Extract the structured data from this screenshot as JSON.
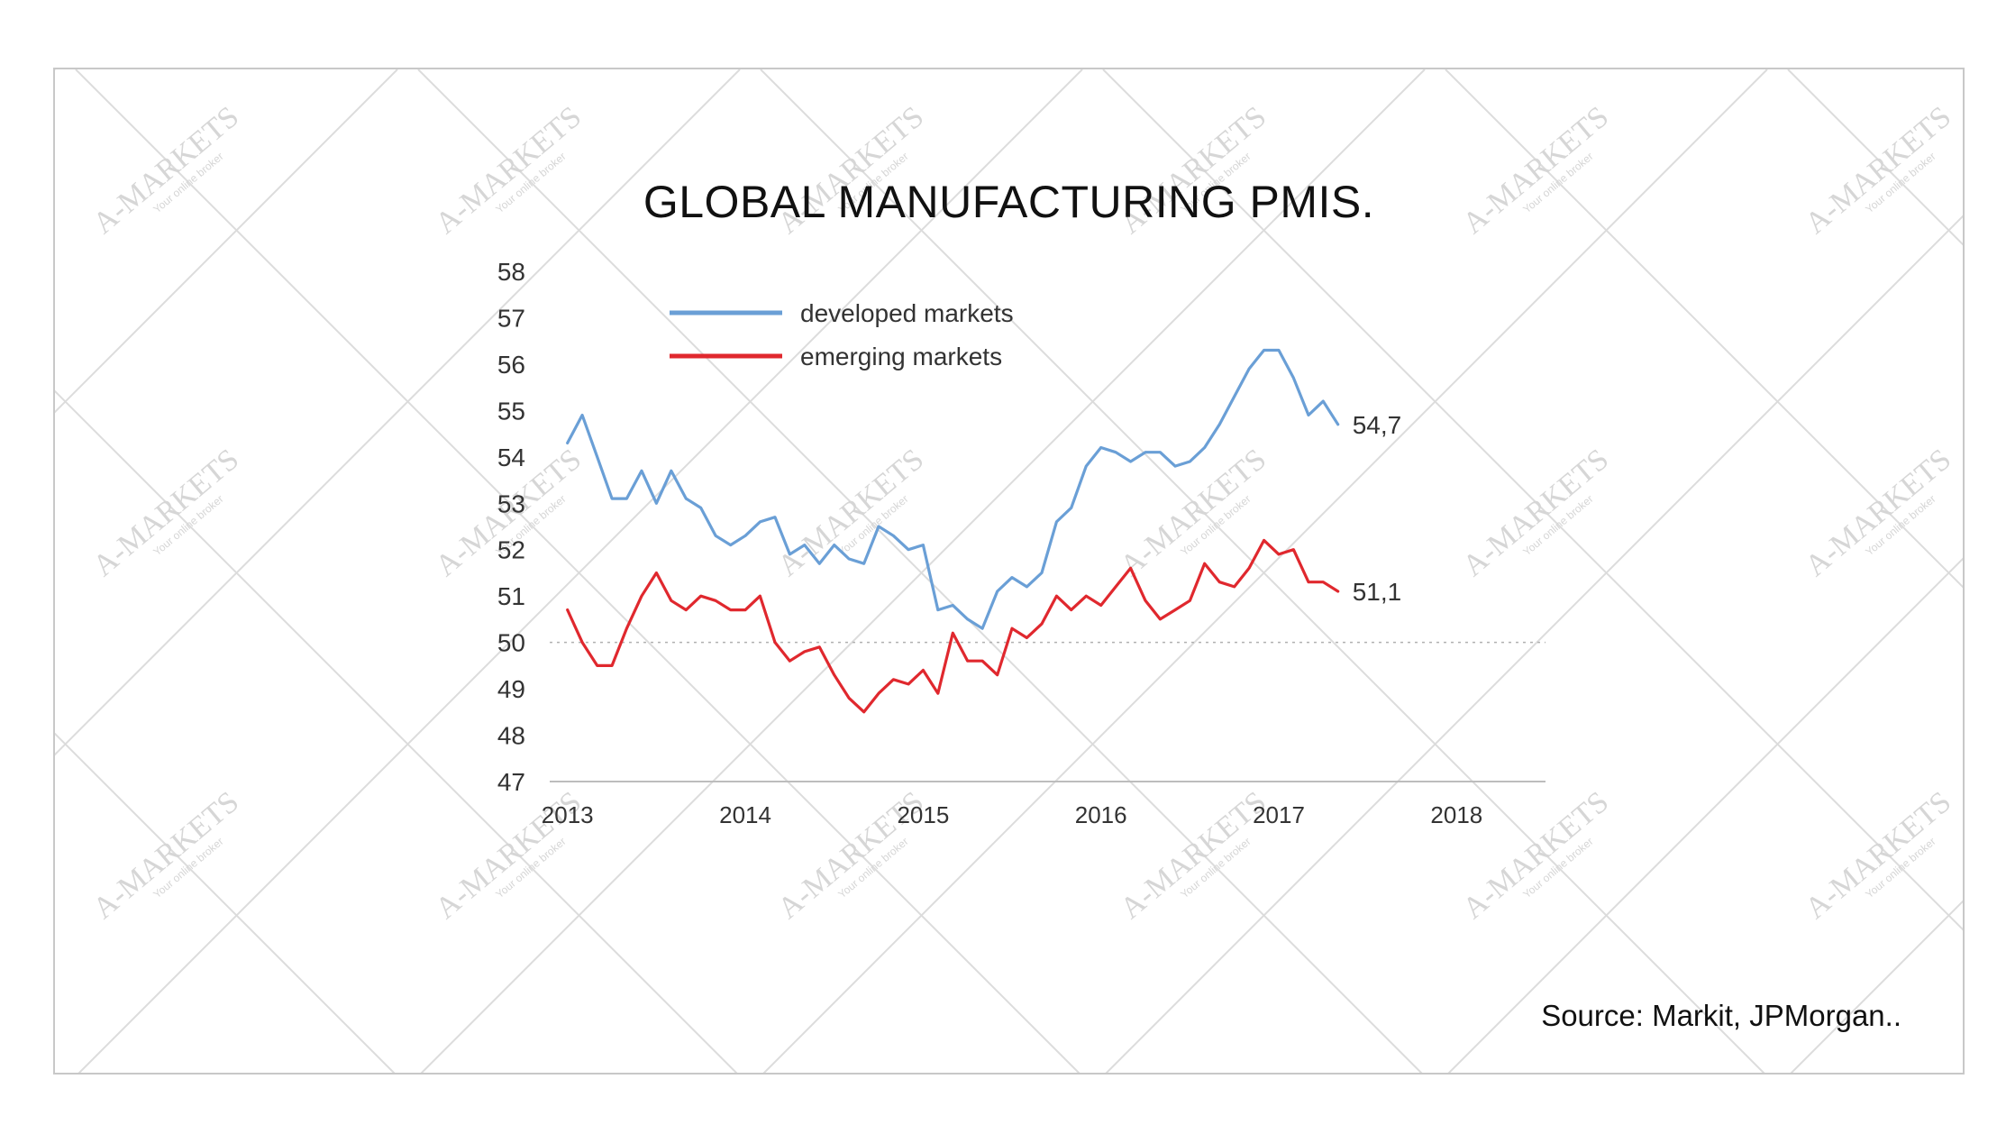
{
  "chart_data": {
    "type": "line",
    "title": "GLOBAL MANUFACTURING PMIS.",
    "xlabel": "",
    "ylabel": "",
    "ylim": [
      47,
      58
    ],
    "xlim": [
      2012.9,
      2018.5
    ],
    "yticks": [
      "58",
      "57",
      "56",
      "55",
      "54",
      "53",
      "52",
      "51",
      "50",
      "49",
      "48",
      "47"
    ],
    "xticks": [
      "2013",
      "2014",
      "2015",
      "2016",
      "2017",
      "2018"
    ],
    "reference_line": 50,
    "legend_position": "top-left",
    "series": [
      {
        "name": "developed markets",
        "color": "#6a9fd6",
        "end_label": "54,7",
        "x": [
          2013.0,
          2013.083,
          2013.167,
          2013.25,
          2013.333,
          2013.417,
          2013.5,
          2013.583,
          2013.667,
          2013.75,
          2013.833,
          2013.917,
          2014.0,
          2014.083,
          2014.167,
          2014.25,
          2014.333,
          2014.417,
          2014.5,
          2014.583,
          2014.667,
          2014.75,
          2014.833,
          2014.917,
          2015.0,
          2015.083,
          2015.167,
          2015.25,
          2015.333,
          2015.417,
          2015.5,
          2015.583,
          2015.667,
          2015.75,
          2015.833,
          2015.917,
          2016.0,
          2016.083,
          2016.167,
          2016.25,
          2016.333,
          2016.417,
          2016.5,
          2016.583,
          2016.667,
          2016.75,
          2016.833,
          2016.917,
          2017.0,
          2017.083,
          2017.167,
          2017.25,
          2017.333
        ],
        "values": [
          54.3,
          54.9,
          54.0,
          53.1,
          53.1,
          53.7,
          53.0,
          53.7,
          53.1,
          52.9,
          52.3,
          52.1,
          52.3,
          52.6,
          52.7,
          51.9,
          52.1,
          51.7,
          52.1,
          51.8,
          51.7,
          52.5,
          52.3,
          52.0,
          52.1,
          50.7,
          50.8,
          50.5,
          50.3,
          51.1,
          51.4,
          51.2,
          51.5,
          52.6,
          52.9,
          53.8,
          54.2,
          54.1,
          53.9,
          54.1,
          54.1,
          53.8,
          53.9,
          54.2,
          54.7,
          55.3,
          55.9,
          56.3,
          56.3,
          55.7,
          54.9,
          55.2,
          54.7
        ]
      },
      {
        "name": "emerging markets",
        "color": "#e0282e",
        "end_label": "51,1",
        "x": [
          2013.0,
          2013.083,
          2013.167,
          2013.25,
          2013.333,
          2013.417,
          2013.5,
          2013.583,
          2013.667,
          2013.75,
          2013.833,
          2013.917,
          2014.0,
          2014.083,
          2014.167,
          2014.25,
          2014.333,
          2014.417,
          2014.5,
          2014.583,
          2014.667,
          2014.75,
          2014.833,
          2014.917,
          2015.0,
          2015.083,
          2015.167,
          2015.25,
          2015.333,
          2015.417,
          2015.5,
          2015.583,
          2015.667,
          2015.75,
          2015.833,
          2015.917,
          2016.0,
          2016.083,
          2016.167,
          2016.25,
          2016.333,
          2016.417,
          2016.5,
          2016.583,
          2016.667,
          2016.75,
          2016.833,
          2016.917,
          2017.0,
          2017.083,
          2017.167,
          2017.25,
          2017.333
        ],
        "values": [
          50.7,
          50.0,
          49.5,
          49.5,
          50.3,
          51.0,
          51.5,
          50.9,
          50.7,
          51.0,
          50.9,
          50.7,
          50.7,
          51.0,
          50.0,
          49.6,
          49.8,
          49.9,
          49.3,
          48.8,
          48.5,
          48.9,
          49.2,
          49.1,
          49.4,
          48.9,
          50.2,
          49.6,
          49.6,
          49.3,
          50.3,
          50.1,
          50.4,
          51.0,
          50.7,
          51.0,
          50.8,
          51.2,
          51.6,
          50.9,
          50.5,
          50.7,
          50.9,
          51.7,
          51.3,
          51.2,
          51.6,
          52.2,
          51.9,
          52.0,
          51.3,
          51.3,
          51.1
        ]
      }
    ]
  },
  "source": "Source: Markit, JPMorgan..",
  "watermark": {
    "brand": "A-MARKETS",
    "tagline": "Your online broker"
  }
}
